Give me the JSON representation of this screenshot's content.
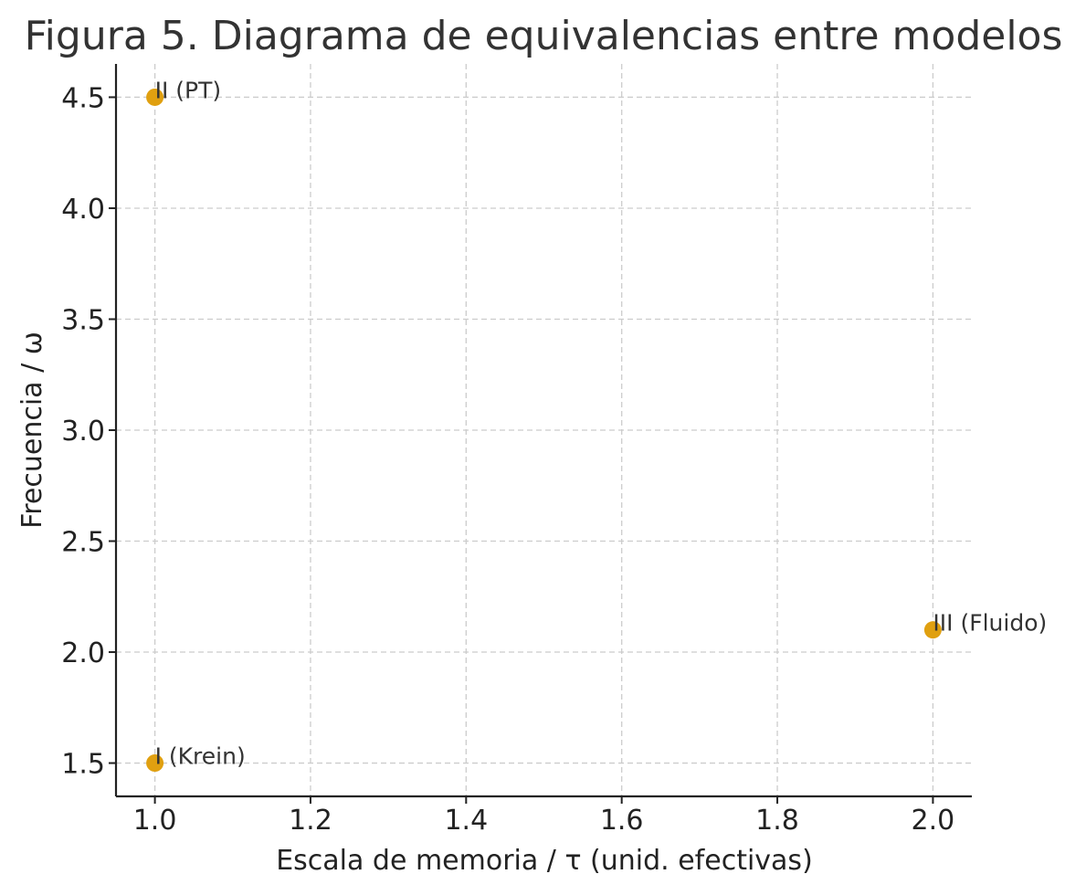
{
  "chart_data": {
    "type": "scatter",
    "title": "Figura 5. Diagrama de equivalencias entre modelos",
    "xlabel": "Escala de memoria / τ (unid. efectivas)",
    "ylabel": "Frecuencia / ω",
    "xlim": [
      0.95,
      2.05
    ],
    "ylim": [
      1.35,
      4.65
    ],
    "xticks": [
      1.0,
      1.2,
      1.4,
      1.6,
      1.8,
      2.0
    ],
    "yticks": [
      1.5,
      2.0,
      2.5,
      3.0,
      3.5,
      4.0,
      4.5
    ],
    "xtick_labels": [
      "1.0",
      "1.2",
      "1.4",
      "1.6",
      "1.8",
      "2.0"
    ],
    "ytick_labels": [
      "1.5",
      "2.0",
      "2.5",
      "3.0",
      "3.5",
      "4.0",
      "4.5"
    ],
    "grid": true,
    "marker_color": "#E0A010",
    "points": [
      {
        "x": 1.0,
        "y": 1.5,
        "label": "I (Krein)"
      },
      {
        "x": 1.0,
        "y": 4.5,
        "label": "II (PT)"
      },
      {
        "x": 2.0,
        "y": 2.1,
        "label": "III (Fluido)"
      }
    ]
  }
}
